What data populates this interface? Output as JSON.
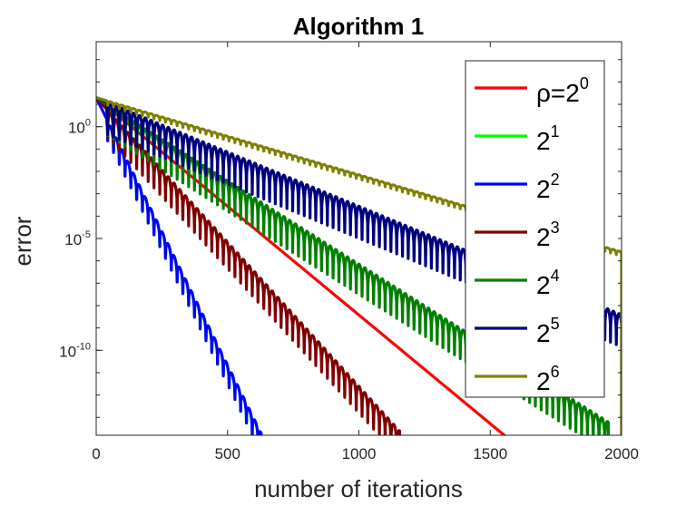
{
  "chart_data": {
    "type": "line",
    "title": "Algorithm 1",
    "xlabel": "number of iterations",
    "ylabel": "error",
    "xlim": [
      0,
      2000
    ],
    "ylim_log10": [
      -13.8,
      3.8
    ],
    "yscale": "log",
    "xticks": [
      "0",
      "500",
      "1000",
      "1500",
      "2000"
    ],
    "yticks": [
      {
        "base": "10",
        "exp": "0",
        "value": 0
      },
      {
        "base": "10",
        "exp": "-5",
        "value": -5
      },
      {
        "base": "10",
        "exp": "-10",
        "value": -10
      }
    ],
    "legend_position": "top-right",
    "grid": false,
    "series": [
      {
        "name": "ρ=2^0",
        "label_base": "ρ=2",
        "label_exp": "0",
        "color": "#ff0000",
        "start_log10": 1.3,
        "slope_per_iter": -0.00972,
        "end_x": 1562,
        "oscillation": 0
      },
      {
        "name": "2^1",
        "label_base": "2",
        "label_exp": "1",
        "color": "#00ff00",
        "start_log10": 1.3,
        "slope_per_iter": -0.0239,
        "end_x": 625,
        "oscillation": 0.55
      },
      {
        "name": "2^2",
        "label_base": "2",
        "label_exp": "2",
        "color": "#0000ff",
        "start_log10": 1.3,
        "slope_per_iter": -0.0239,
        "end_x": 628,
        "oscillation": 0.55
      },
      {
        "name": "2^3",
        "label_base": "2",
        "label_exp": "3",
        "color": "#800000",
        "start_log10": 1.3,
        "slope_per_iter": -0.0129,
        "end_x": 1155,
        "oscillation": 0.75
      },
      {
        "name": "2^4",
        "label_base": "2",
        "label_exp": "4",
        "color": "#008000",
        "start_log10": 1.3,
        "slope_per_iter": -0.00744,
        "end_x": 1950,
        "oscillation": 0.85
      },
      {
        "name": "2^5",
        "label_base": "2",
        "label_exp": "5",
        "color": "#00007f",
        "start_log10": 1.3,
        "slope_per_iter": -0.00485,
        "end_x": 2000,
        "oscillation": 0.9
      },
      {
        "name": "2^6",
        "label_base": "2",
        "label_exp": "6",
        "color": "#808000",
        "start_log10": 1.3,
        "slope_per_iter": -0.00345,
        "end_x": 2000,
        "oscillation": 0.12
      }
    ]
  }
}
